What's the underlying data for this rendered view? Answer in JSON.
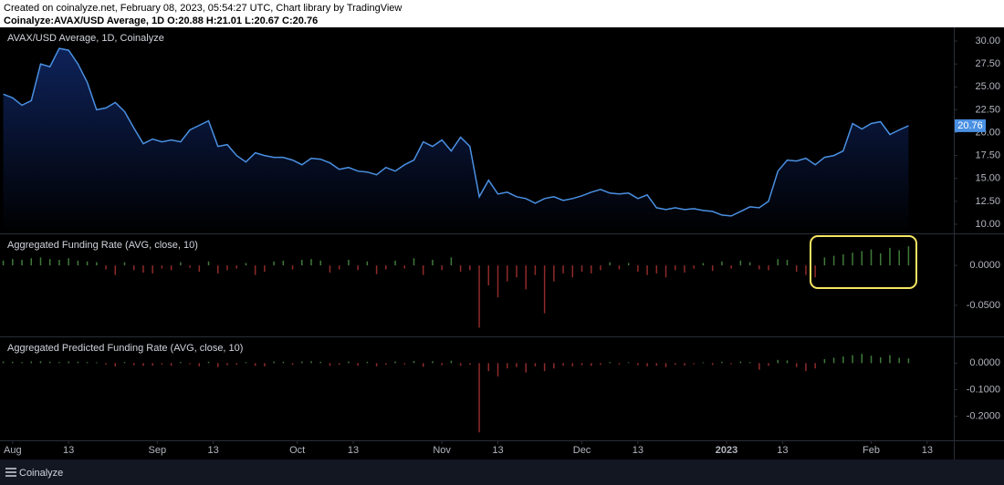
{
  "header": {
    "created": "Created on coinalyze.net, February 08, 2023, 05:54:27 UTC, Chart library by TradingView",
    "symbol": "Coinalyze:AVAX/USD Average, 1D O:20.88 H:21.01 L:20.67 C:20.76"
  },
  "footer": {
    "brand": "Coinalyze"
  },
  "chart_data": [
    {
      "type": "line",
      "title": "AVAX/USD Average, 1D, Coinalyze",
      "color": "#4a90e2",
      "x": [
        -2,
        0,
        2,
        4,
        6,
        8,
        10,
        12,
        14,
        16,
        18,
        20,
        22,
        24,
        26,
        28,
        30,
        32,
        34,
        36,
        38,
        40,
        42,
        44,
        46,
        48,
        50,
        52,
        54,
        56,
        58,
        60,
        62,
        64,
        66,
        68,
        70,
        72,
        74,
        76,
        78,
        80,
        82,
        84,
        86,
        88,
        90,
        92,
        94,
        96,
        98,
        100,
        102,
        104,
        106,
        108,
        110,
        112,
        114,
        116,
        118,
        120,
        122,
        124,
        126,
        128,
        130,
        132,
        134,
        136,
        138,
        140,
        142,
        144,
        146,
        148,
        150,
        152,
        154,
        156,
        158,
        160,
        162,
        164,
        166,
        168,
        170,
        172,
        174,
        176,
        178,
        180,
        182,
        184,
        186,
        188,
        190,
        192
      ],
      "values": [
        24.2,
        23.8,
        23.0,
        23.5,
        27.5,
        27.2,
        29.2,
        29.0,
        27.5,
        25.5,
        22.5,
        22.7,
        23.3,
        22.3,
        20.5,
        18.8,
        19.3,
        19.0,
        19.2,
        19.0,
        20.3,
        20.8,
        21.3,
        18.5,
        18.7,
        17.5,
        16.8,
        17.8,
        17.5,
        17.3,
        17.3,
        17.0,
        16.5,
        17.2,
        17.1,
        16.7,
        16.0,
        16.2,
        15.8,
        15.7,
        15.4,
        16.2,
        15.8,
        16.5,
        17.0,
        19.0,
        18.5,
        19.2,
        18.0,
        19.5,
        18.5,
        13.0,
        14.8,
        13.3,
        13.5,
        13.0,
        12.8,
        12.3,
        12.8,
        13.0,
        12.6,
        12.8,
        13.1,
        13.5,
        13.8,
        13.4,
        13.3,
        13.4,
        12.8,
        13.2,
        11.8,
        11.6,
        11.8,
        11.6,
        11.7,
        11.5,
        11.4,
        11.0,
        10.9,
        11.4,
        11.9,
        11.8,
        12.5,
        15.8,
        17.0,
        16.9,
        17.2,
        16.5,
        17.3,
        17.5,
        18.0,
        21.0,
        20.4,
        21.0,
        21.2,
        19.8,
        20.3,
        20.76
      ],
      "xlim": [
        -2.7,
        201.7
      ],
      "ylim": [
        9,
        31.5
      ],
      "yticks": [
        {
          "value": 30,
          "label": "30.00"
        },
        {
          "value": 27.5,
          "label": "27.50"
        },
        {
          "value": 25,
          "label": "25.00"
        },
        {
          "value": 22.5,
          "label": "22.50"
        },
        {
          "value": 20,
          "label": "20.00"
        },
        {
          "value": 17.5,
          "label": "17.50"
        },
        {
          "value": 15,
          "label": "15.00"
        },
        {
          "value": 12.5,
          "label": "12.50"
        },
        {
          "value": 10,
          "label": "10.00"
        }
      ]
    },
    {
      "type": "bar",
      "title": "Aggregated Funding Rate (AVG, close, 10)",
      "positive_color": "#3f7a3a",
      "negative_color": "#8f2a2a",
      "x": [
        -2,
        0,
        2,
        4,
        6,
        8,
        10,
        12,
        14,
        16,
        18,
        20,
        22,
        24,
        26,
        28,
        30,
        32,
        34,
        36,
        38,
        40,
        42,
        44,
        46,
        48,
        50,
        52,
        54,
        56,
        58,
        60,
        62,
        64,
        66,
        68,
        70,
        72,
        74,
        76,
        78,
        80,
        82,
        84,
        86,
        88,
        90,
        92,
        94,
        96,
        98,
        100,
        102,
        104,
        106,
        108,
        110,
        112,
        114,
        116,
        118,
        120,
        122,
        124,
        126,
        128,
        130,
        132,
        134,
        136,
        138,
        140,
        142,
        144,
        146,
        148,
        150,
        152,
        154,
        156,
        158,
        160,
        162,
        164,
        166,
        168,
        170,
        172,
        174,
        176,
        178,
        180,
        182,
        184,
        186,
        188,
        190,
        192
      ],
      "values": [
        0.006,
        0.008,
        0.007,
        0.009,
        0.01,
        0.008,
        0.007,
        0.009,
        0.006,
        0.005,
        0.004,
        -0.005,
        -0.012,
        0.004,
        -0.006,
        -0.009,
        -0.01,
        -0.004,
        -0.006,
        0.004,
        -0.003,
        -0.008,
        0.005,
        -0.01,
        -0.006,
        -0.004,
        0.003,
        -0.012,
        -0.008,
        0.005,
        0.006,
        -0.005,
        0.007,
        0.008,
        0.006,
        -0.009,
        -0.005,
        0.007,
        -0.006,
        0.005,
        -0.011,
        -0.005,
        0.006,
        -0.004,
        0.009,
        -0.012,
        0.007,
        -0.006,
        0.01,
        -0.008,
        -0.006,
        -0.078,
        -0.025,
        -0.04,
        -0.02,
        -0.015,
        -0.03,
        -0.012,
        -0.06,
        -0.02,
        -0.01,
        -0.015,
        -0.008,
        -0.01,
        -0.006,
        0.004,
        -0.005,
        0.003,
        -0.008,
        -0.012,
        -0.01,
        -0.015,
        -0.006,
        -0.009,
        -0.004,
        0.003,
        -0.007,
        0.005,
        -0.004,
        0.006,
        0.004,
        -0.005,
        -0.006,
        0.008,
        0.007,
        -0.008,
        -0.012,
        -0.015,
        0.01,
        0.012,
        0.014,
        0.016,
        0.018,
        0.02,
        0.015,
        0.022,
        0.019,
        0.024
      ],
      "xlim": [
        -2.7,
        201.7
      ],
      "ylim": [
        -0.089,
        0.039
      ],
      "yticks": [
        {
          "value": 0,
          "label": "0.0000"
        },
        {
          "value": -0.05,
          "label": "-0.0500"
        }
      ]
    },
    {
      "type": "bar",
      "title": "Aggregated Predicted Funding Rate (AVG, close, 10)",
      "positive_color": "#3f7a3a",
      "negative_color": "#8f2a2a",
      "x": [
        -2,
        0,
        2,
        4,
        6,
        8,
        10,
        12,
        14,
        16,
        18,
        20,
        22,
        24,
        26,
        28,
        30,
        32,
        34,
        36,
        38,
        40,
        42,
        44,
        46,
        48,
        50,
        52,
        54,
        56,
        58,
        60,
        62,
        64,
        66,
        68,
        70,
        72,
        74,
        76,
        78,
        80,
        82,
        84,
        86,
        88,
        90,
        92,
        94,
        96,
        98,
        100,
        102,
        104,
        106,
        108,
        110,
        112,
        114,
        116,
        118,
        120,
        122,
        124,
        126,
        128,
        130,
        132,
        134,
        136,
        138,
        140,
        142,
        144,
        146,
        148,
        150,
        152,
        154,
        156,
        158,
        160,
        162,
        164,
        166,
        168,
        170,
        172,
        174,
        176,
        178,
        180,
        182,
        184,
        186,
        188,
        190,
        192
      ],
      "values": [
        0.006,
        0.005,
        0.004,
        0.006,
        0.007,
        0.005,
        0.004,
        0.006,
        0.005,
        0.004,
        0.003,
        -0.005,
        -0.012,
        0.004,
        -0.008,
        -0.01,
        -0.009,
        -0.005,
        -0.01,
        0.004,
        -0.004,
        -0.012,
        0.005,
        -0.015,
        -0.008,
        -0.006,
        0.004,
        -0.01,
        -0.012,
        0.006,
        0.005,
        -0.006,
        0.006,
        0.007,
        0.005,
        -0.01,
        -0.006,
        0.006,
        -0.01,
        0.005,
        -0.012,
        -0.006,
        0.006,
        -0.005,
        0.008,
        -0.014,
        0.007,
        -0.008,
        0.009,
        -0.01,
        -0.006,
        -0.26,
        -0.03,
        -0.05,
        -0.02,
        -0.015,
        -0.035,
        -0.012,
        -0.03,
        -0.02,
        -0.01,
        -0.012,
        -0.008,
        -0.01,
        -0.006,
        0.004,
        -0.005,
        0.003,
        -0.008,
        -0.012,
        -0.01,
        -0.015,
        -0.006,
        -0.009,
        -0.004,
        0.003,
        -0.007,
        0.005,
        -0.004,
        0.006,
        0.004,
        -0.025,
        -0.01,
        0.012,
        0.01,
        -0.015,
        -0.03,
        -0.02,
        0.015,
        0.02,
        0.025,
        0.03,
        0.035,
        0.028,
        0.022,
        0.03,
        0.02,
        0.018
      ],
      "xlim": [
        -2.7,
        201.7
      ],
      "ylim": [
        -0.29,
        0.097
      ],
      "yticks": [
        {
          "value": 0,
          "label": "0.0000"
        },
        {
          "value": -0.1,
          "label": "-0.1000"
        },
        {
          "value": -0.2,
          "label": "-0.2000"
        }
      ],
      "xticks": [
        {
          "value": 0,
          "label": "Aug"
        },
        {
          "value": 12,
          "label": "13"
        },
        {
          "value": 31,
          "label": "Sep"
        },
        {
          "value": 43,
          "label": "13"
        },
        {
          "value": 61,
          "label": "Oct"
        },
        {
          "value": 73,
          "label": "13"
        },
        {
          "value": 92,
          "label": "Nov"
        },
        {
          "value": 104,
          "label": "13"
        },
        {
          "value": 122,
          "label": "Dec"
        },
        {
          "value": 134,
          "label": "13"
        },
        {
          "value": 153,
          "label": "2023"
        },
        {
          "value": 165,
          "label": "13"
        },
        {
          "value": 184,
          "label": "Feb"
        },
        {
          "value": 196,
          "label": "13"
        }
      ]
    }
  ]
}
